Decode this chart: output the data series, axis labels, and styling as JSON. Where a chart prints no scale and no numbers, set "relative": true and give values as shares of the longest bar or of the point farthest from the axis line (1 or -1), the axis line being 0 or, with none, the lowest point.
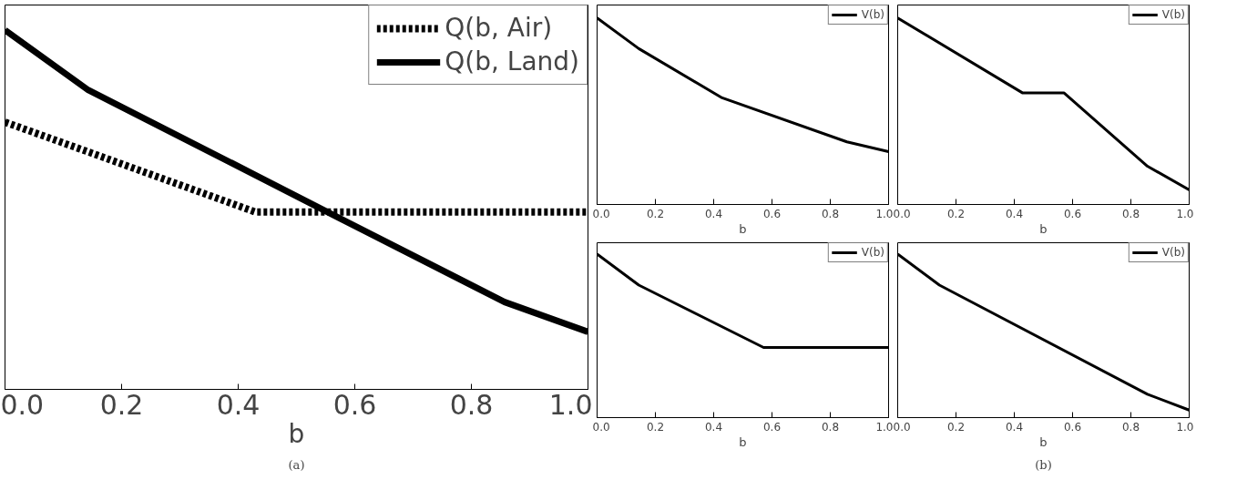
{
  "chart_data": [
    {
      "type": "line",
      "relative": true,
      "x": [
        0,
        0.143,
        0.429,
        0.571,
        0.857,
        1.0
      ],
      "xlim": [
        0,
        1
      ],
      "xticks": [
        {
          "value": 0,
          "label": "0.0"
        },
        {
          "value": 0.2,
          "label": "0.2"
        },
        {
          "value": 0.4,
          "label": "0.4"
        },
        {
          "value": 0.6,
          "label": "0.6"
        },
        {
          "value": 0.8,
          "label": "0.8"
        },
        {
          "value": 1,
          "label": "1.0"
        }
      ],
      "xlabel": "b",
      "tick_labels": "x",
      "legend": "top right",
      "grid": false,
      "annotations": [
        "(a)"
      ],
      "series": [
        {
          "name": "Q(b, Air)",
          "color": "#000000",
          "line_style": "dotted",
          "values": [
            0.744,
            0.661,
            0.494,
            0.494,
            0.494,
            0.494
          ]
        },
        {
          "name": "Q(b, Land)",
          "color": "#000000",
          "line_style": "solid",
          "values": [
            1,
            0.833,
            0.597,
            0.479,
            0.243,
            0.16
          ]
        }
      ]
    },
    {
      "type": "line",
      "relative": true,
      "x": [
        0,
        0.143,
        0.429,
        0.857,
        1.0
      ],
      "xlim": [
        0,
        1
      ],
      "xticks": [
        {
          "value": 0,
          "label": "0.0"
        },
        {
          "value": 0.2,
          "label": "0.2"
        },
        {
          "value": 0.4,
          "label": "0.4"
        },
        {
          "value": 0.6,
          "label": "0.6"
        },
        {
          "value": 0.8,
          "label": "0.8"
        },
        {
          "value": 1,
          "label": "1.0"
        }
      ],
      "xlabel": "b",
      "tick_labels": "x",
      "legend": "top right",
      "grid": false,
      "series": [
        {
          "name": "V(b)",
          "color": "#000000",
          "line_style": "solid",
          "values": [
            1,
            0.836,
            0.572,
            0.336,
            0.283
          ]
        }
      ]
    },
    {
      "type": "line",
      "relative": true,
      "x": [
        0,
        0.429,
        0.571,
        0.857,
        1.0
      ],
      "xlim": [
        0,
        1
      ],
      "xticks": [
        {
          "value": 0,
          "label": "0.0"
        },
        {
          "value": 0.2,
          "label": "0.2"
        },
        {
          "value": 0.4,
          "label": "0.4"
        },
        {
          "value": 0.6,
          "label": "0.6"
        },
        {
          "value": 0.8,
          "label": "0.8"
        },
        {
          "value": 1,
          "label": "1.0"
        }
      ],
      "xlabel": "b",
      "tick_labels": "x",
      "legend": "top right",
      "grid": false,
      "series": [
        {
          "name": "V(b)",
          "color": "#000000",
          "line_style": "solid",
          "values": [
            1,
            0.598,
            0.598,
            0.205,
            0.079
          ]
        }
      ]
    },
    {
      "type": "line",
      "relative": true,
      "x": [
        0,
        0.143,
        0.571,
        1.0
      ],
      "xlim": [
        0,
        1
      ],
      "xticks": [
        {
          "value": 0,
          "label": "0.0"
        },
        {
          "value": 0.2,
          "label": "0.2"
        },
        {
          "value": 0.4,
          "label": "0.4"
        },
        {
          "value": 0.6,
          "label": "0.6"
        },
        {
          "value": 0.8,
          "label": "0.8"
        },
        {
          "value": 1,
          "label": "1.0"
        }
      ],
      "xlabel": "b",
      "tick_labels": "x",
      "legend": "top right",
      "grid": false,
      "series": [
        {
          "name": "V(b)",
          "color": "#000000",
          "line_style": "solid",
          "values": [
            1,
            0.811,
            0.429,
            0.429
          ]
        }
      ]
    },
    {
      "type": "line",
      "relative": true,
      "x": [
        0,
        0.143,
        0.857,
        1.0
      ],
      "xlim": [
        0,
        1
      ],
      "xticks": [
        {
          "value": 0,
          "label": "0.0"
        },
        {
          "value": 0.2,
          "label": "0.2"
        },
        {
          "value": 0.4,
          "label": "0.4"
        },
        {
          "value": 0.6,
          "label": "0.6"
        },
        {
          "value": 0.8,
          "label": "0.8"
        },
        {
          "value": 1,
          "label": "1.0"
        }
      ],
      "xlabel": "b",
      "tick_labels": "x",
      "legend": "top right",
      "grid": false,
      "annotations": [
        "(b)"
      ],
      "series": [
        {
          "name": "V(b)",
          "color": "#000000",
          "line_style": "solid",
          "values": [
            1,
            0.811,
            0.143,
            0.046
          ]
        }
      ]
    }
  ]
}
